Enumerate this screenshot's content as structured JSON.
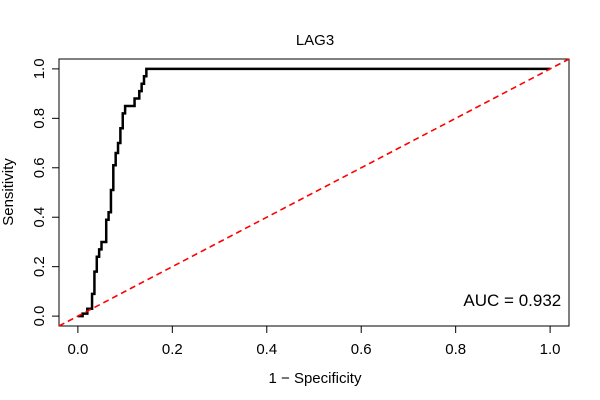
{
  "chart_data": {
    "type": "line",
    "title": "LAG3",
    "xlabel": "1 − Specificity",
    "ylabel": "Sensitivity",
    "xlim": [
      -0.04,
      1.04
    ],
    "ylim": [
      -0.04,
      1.04
    ],
    "xticks": [
      0.0,
      0.2,
      0.4,
      0.6,
      0.8,
      1.0
    ],
    "xtick_labels": [
      "0.0",
      "0.2",
      "0.4",
      "0.6",
      "0.8",
      "1.0"
    ],
    "yticks": [
      0.0,
      0.2,
      0.4,
      0.6,
      0.8,
      1.0
    ],
    "ytick_labels": [
      "0.0",
      "0.2",
      "0.4",
      "0.6",
      "0.8",
      "1.0"
    ],
    "grid": false,
    "series": [
      {
        "style": "step",
        "color": "#000000",
        "points": [
          [
            0.0,
            0.0
          ],
          [
            0.01,
            0.0
          ],
          [
            0.01,
            0.01
          ],
          [
            0.02,
            0.01
          ],
          [
            0.02,
            0.03
          ],
          [
            0.03,
            0.03
          ],
          [
            0.03,
            0.09
          ],
          [
            0.035,
            0.09
          ],
          [
            0.035,
            0.18
          ],
          [
            0.04,
            0.18
          ],
          [
            0.04,
            0.24
          ],
          [
            0.045,
            0.24
          ],
          [
            0.045,
            0.27
          ],
          [
            0.05,
            0.27
          ],
          [
            0.05,
            0.3
          ],
          [
            0.06,
            0.3
          ],
          [
            0.06,
            0.39
          ],
          [
            0.065,
            0.39
          ],
          [
            0.065,
            0.42
          ],
          [
            0.07,
            0.42
          ],
          [
            0.07,
            0.51
          ],
          [
            0.075,
            0.51
          ],
          [
            0.075,
            0.61
          ],
          [
            0.08,
            0.61
          ],
          [
            0.08,
            0.66
          ],
          [
            0.085,
            0.66
          ],
          [
            0.085,
            0.7
          ],
          [
            0.09,
            0.7
          ],
          [
            0.09,
            0.76
          ],
          [
            0.095,
            0.76
          ],
          [
            0.095,
            0.82
          ],
          [
            0.1,
            0.82
          ],
          [
            0.1,
            0.85
          ],
          [
            0.12,
            0.85
          ],
          [
            0.12,
            0.88
          ],
          [
            0.13,
            0.88
          ],
          [
            0.13,
            0.91
          ],
          [
            0.135,
            0.91
          ],
          [
            0.135,
            0.94
          ],
          [
            0.14,
            0.94
          ],
          [
            0.14,
            0.97
          ],
          [
            0.145,
            0.97
          ],
          [
            0.145,
            1.0
          ],
          [
            1.0,
            1.0
          ]
        ]
      },
      {
        "style": "dashed",
        "color": "#ff0000",
        "points": [
          [
            -0.04,
            -0.04
          ],
          [
            1.04,
            1.04
          ]
        ]
      }
    ],
    "annotations": [
      {
        "text": "AUC = 0.932",
        "x": 0.92,
        "y": 0.04
      }
    ]
  }
}
